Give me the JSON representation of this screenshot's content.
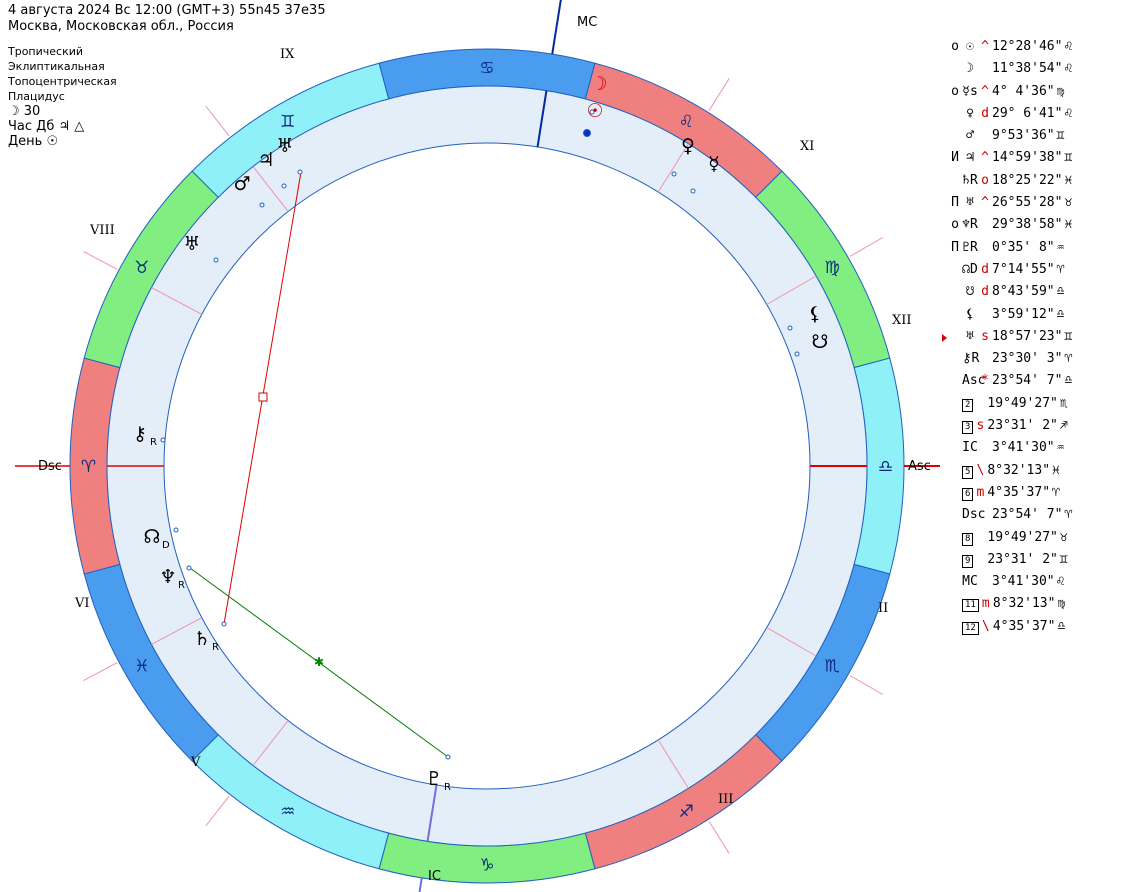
{
  "header": {
    "line1": "4 августа 2024  Вс  12:00 (GMT+3) 55n45  37e35",
    "line2": "Москва, Московская обл., Россия"
  },
  "settings": {
    "zodiac": "Тропический",
    "coords": "Эклиптикальная",
    "centric": "Топоцентрическая",
    "houses": "Плацидус",
    "moon_day": "☽  30",
    "hour_ruler": "Час Дб  ♃  △",
    "day": "День  ☉"
  },
  "angles": {
    "mc": "MC",
    "ic": "IC",
    "asc": "Asc",
    "dsc": "Dsc"
  },
  "house_labels": [
    "II",
    "III",
    "V",
    "VI",
    "VIII",
    "IX",
    "XI",
    "XII"
  ],
  "zodiac_signs": [
    "♋",
    "♌",
    "♍",
    "♎",
    "♏",
    "♐",
    "♑",
    "♒",
    "♓",
    "♈",
    "♉",
    "♊"
  ],
  "zodiac_colors": {
    "fire": "#f08080",
    "earth": "#80ee80",
    "air": "#90f0f8",
    "water": "#4a9cef"
  },
  "chart_planets": [
    {
      "glyph": "☽",
      "sub": "",
      "color": "#d00000"
    },
    {
      "glyph": "☉",
      "sub": "",
      "color": "#d00000"
    },
    {
      "glyph": "♀",
      "sub": "",
      "color": "#000000"
    },
    {
      "glyph": "☿",
      "sub": "",
      "color": "#000000"
    },
    {
      "glyph": "♅",
      "sub": "",
      "color": "#000000"
    },
    {
      "glyph": "♃",
      "sub": "",
      "color": "#000000"
    },
    {
      "glyph": "♂",
      "sub": "",
      "color": "#000000"
    },
    {
      "glyph": "♅",
      "sub": "",
      "color": "#000000"
    },
    {
      "glyph": "⚸",
      "sub": "",
      "color": "#000000"
    },
    {
      "glyph": "☋",
      "sub": "",
      "color": "#000000"
    },
    {
      "glyph": "⚷",
      "sub": "R",
      "color": "#000000"
    },
    {
      "glyph": "☊",
      "sub": "D",
      "color": "#000000"
    },
    {
      "glyph": "♆",
      "sub": "R",
      "color": "#000000"
    },
    {
      "glyph": "♄",
      "sub": "R",
      "color": "#000000"
    },
    {
      "glyph": "♇",
      "sub": "R",
      "color": "#000000"
    }
  ],
  "positions": [
    {
      "mark": "о",
      "glyph": "☉",
      "flag": "^",
      "value": "12°28'46\"",
      "sign": "♌"
    },
    {
      "mark": "",
      "glyph": "☽",
      "flag": "",
      "value": "11°38'54\"",
      "sign": "♌"
    },
    {
      "mark": "о",
      "glyph": "☿s",
      "flag": "^",
      "value": "4° 4'36\"",
      "sign": "♍"
    },
    {
      "mark": "",
      "glyph": "♀",
      "flag": "d",
      "value": "29° 6'41\"",
      "sign": "♌"
    },
    {
      "mark": "",
      "glyph": "♂",
      "flag": "",
      "value": "9°53'36\"",
      "sign": "♊"
    },
    {
      "mark": "И",
      "glyph": "♃",
      "flag": "^",
      "value": "14°59'38\"",
      "sign": "♊"
    },
    {
      "mark": "",
      "glyph": "♄R",
      "flag": "о",
      "value": "18°25'22\"",
      "sign": "♓"
    },
    {
      "mark": "П",
      "glyph": "♅",
      "flag": "^",
      "value": "26°55'28\"",
      "sign": "♉"
    },
    {
      "mark": "о",
      "glyph": "♆R",
      "flag": "",
      "value": "29°38'58\"",
      "sign": "♓"
    },
    {
      "mark": "П",
      "glyph": "♇R",
      "flag": "",
      "value": "0°35' 8\"",
      "sign": "♒"
    },
    {
      "mark": "",
      "glyph": "☊D",
      "flag": "d",
      "value": "7°14'55\"",
      "sign": "♈"
    },
    {
      "mark": "",
      "glyph": "☋",
      "flag": "d",
      "value": "8°43'59\"",
      "sign": "♎"
    },
    {
      "mark": "",
      "glyph": "⚸",
      "flag": "",
      "value": "3°59'12\"",
      "sign": "♎"
    },
    {
      "mark": "",
      "glyph": "♅",
      "flag": "s",
      "value": "18°57'23\"",
      "sign": "♊"
    },
    {
      "mark": "",
      "glyph": "⚷R",
      "flag": "",
      "value": "23°30' 3\"",
      "sign": "♈"
    },
    {
      "mark": "",
      "glyph": "Asc",
      "flag": "*",
      "value": "23°54' 7\"",
      "sign": "♎"
    },
    {
      "mark": "",
      "glyph": "2",
      "flag": "",
      "value": "19°49'27\"",
      "sign": "♏"
    },
    {
      "mark": "",
      "glyph": "3",
      "flag": "s",
      "value": "23°31' 2\"",
      "sign": "♐"
    },
    {
      "mark": "",
      "glyph": "IC",
      "flag": "",
      "value": "3°41'30\"",
      "sign": "♒"
    },
    {
      "mark": "",
      "glyph": "5",
      "flag": "\\",
      "value": "8°32'13\"",
      "sign": "♓"
    },
    {
      "mark": "",
      "glyph": "6",
      "flag": "m",
      "value": "4°35'37\"",
      "sign": "♈"
    },
    {
      "mark": "",
      "glyph": "Dsc",
      "flag": "",
      "value": "23°54' 7\"",
      "sign": "♈"
    },
    {
      "mark": "",
      "glyph": "8",
      "flag": "",
      "value": "19°49'27\"",
      "sign": "♉"
    },
    {
      "mark": "",
      "glyph": "9",
      "flag": "",
      "value": "23°31' 2\"",
      "sign": "♊"
    },
    {
      "mark": "",
      "glyph": "MC",
      "flag": "",
      "value": "3°41'30\"",
      "sign": "♌"
    },
    {
      "mark": "",
      "glyph": "11",
      "flag": "m",
      "value": "8°32'13\"",
      "sign": "♍"
    },
    {
      "mark": "",
      "glyph": "12",
      "flag": "\\",
      "value": "4°35'37\"",
      "sign": "♎"
    }
  ]
}
